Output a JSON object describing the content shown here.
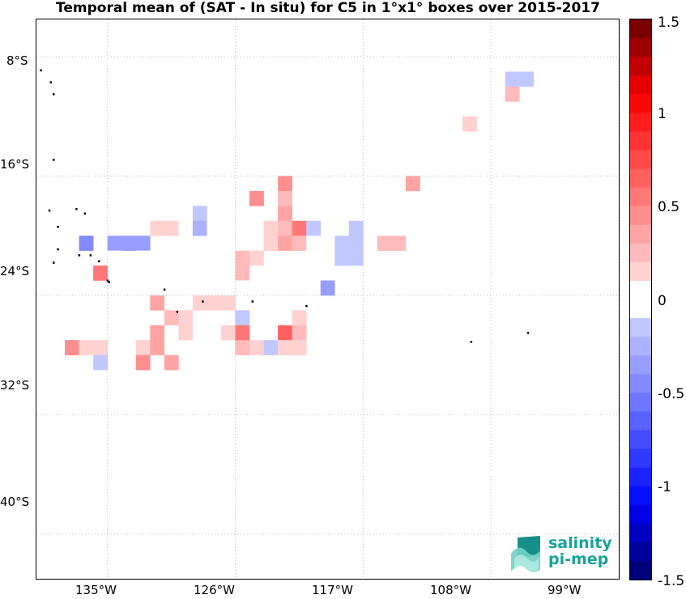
{
  "title": "Temporal mean of (SAT - In situ) for C5 in 1°x1° boxes over 2015-2017",
  "y_axis_labels": [
    "8°S",
    "16°S",
    "24°S",
    "32°S",
    "40°S"
  ],
  "x_axis_labels": [
    "135°W",
    "126°W",
    "117°W",
    "108°W",
    "99°W"
  ],
  "colorbar": {
    "tick_labels": [
      "1.5",
      "1",
      "0.5",
      "0",
      "-0.5",
      "-1",
      "-1.5"
    ],
    "min": -1.5,
    "max": 1.5,
    "levels": 30,
    "neg_color": "#00007a",
    "pos_color": "#7a0000"
  },
  "logo": {
    "line1": "salinity",
    "line2": "pi-mep",
    "color": "#17a39a"
  },
  "chart_data": {
    "type": "heatmap",
    "title": "Temporal mean of (SAT - In situ) for C5 in 1°x1° boxes over 2015-2017",
    "xlabel": "",
    "ylabel": "",
    "lon_range": [
      -140,
      -99
    ],
    "lat_range": [
      -43,
      -5.5
    ],
    "grid": true,
    "cells": [
      {
        "lon": -106.5,
        "lat": -9.5,
        "value": -0.15
      },
      {
        "lon": -105.5,
        "lat": -9.5,
        "value": -0.15
      },
      {
        "lon": -106.5,
        "lat": -10.5,
        "value": 0.25
      },
      {
        "lon": -109.5,
        "lat": -12.5,
        "value": 0.15
      },
      {
        "lon": -122.5,
        "lat": -16.5,
        "value": 0.45
      },
      {
        "lon": -113.5,
        "lat": -16.5,
        "value": 0.3
      },
      {
        "lon": -124.5,
        "lat": -17.5,
        "value": 0.45
      },
      {
        "lon": -122.5,
        "lat": -17.5,
        "value": 0.25
      },
      {
        "lon": -128.5,
        "lat": -18.5,
        "value": -0.1
      },
      {
        "lon": -122.5,
        "lat": -18.5,
        "value": 0.35
      },
      {
        "lon": -120.5,
        "lat": -18.5,
        "value": -0.05
      },
      {
        "lon": -131.5,
        "lat": -19.5,
        "value": 0.1
      },
      {
        "lon": -130.5,
        "lat": -19.5,
        "value": 0.1
      },
      {
        "lon": -129.5,
        "lat": -19.5,
        "value": -0.05
      },
      {
        "lon": -128.5,
        "lat": -19.5,
        "value": -0.25
      },
      {
        "lon": -127.5,
        "lat": -19.5,
        "value": -0.05
      },
      {
        "lon": -123.5,
        "lat": -19.5,
        "value": 0.15
      },
      {
        "lon": -122.5,
        "lat": -19.5,
        "value": 0.2
      },
      {
        "lon": -121.5,
        "lat": -19.5,
        "value": 0.5
      },
      {
        "lon": -120.5,
        "lat": -19.5,
        "value": -0.1
      },
      {
        "lon": -118.5,
        "lat": -19.5,
        "value": -0.05
      },
      {
        "lon": -117.5,
        "lat": -19.5,
        "value": -0.2
      },
      {
        "lon": -136.5,
        "lat": -20.5,
        "value": -0.5
      },
      {
        "lon": -134.5,
        "lat": -20.5,
        "value": -0.3
      },
      {
        "lon": -133.5,
        "lat": -20.5,
        "value": -0.3
      },
      {
        "lon": -132.5,
        "lat": -20.5,
        "value": -0.3
      },
      {
        "lon": -123.5,
        "lat": -20.5,
        "value": 0.15
      },
      {
        "lon": -122.5,
        "lat": -20.5,
        "value": 0.3
      },
      {
        "lon": -121.5,
        "lat": -20.5,
        "value": 0.25
      },
      {
        "lon": -120.5,
        "lat": -20.5,
        "value": -0.05
      },
      {
        "lon": -118.5,
        "lat": -20.5,
        "value": -0.15
      },
      {
        "lon": -117.5,
        "lat": -20.5,
        "value": -0.2
      },
      {
        "lon": -115.5,
        "lat": -20.5,
        "value": 0.2
      },
      {
        "lon": -114.5,
        "lat": -20.5,
        "value": 0.2
      },
      {
        "lon": -134.5,
        "lat": -21.5,
        "value": -0.05
      },
      {
        "lon": -132.5,
        "lat": -21.5,
        "value": -0.05
      },
      {
        "lon": -131.5,
        "lat": -21.5,
        "value": -0.05
      },
      {
        "lon": -129.5,
        "lat": -21.5,
        "value": -0.05
      },
      {
        "lon": -125.5,
        "lat": -21.5,
        "value": 0.2
      },
      {
        "lon": -124.5,
        "lat": -21.5,
        "value": 0.15
      },
      {
        "lon": -118.5,
        "lat": -21.5,
        "value": -0.1
      },
      {
        "lon": -117.5,
        "lat": -21.5,
        "value": -0.2
      },
      {
        "lon": -135.5,
        "lat": -22.5,
        "value": 0.5
      },
      {
        "lon": -125.5,
        "lat": -22.5,
        "value": 0.25
      },
      {
        "lon": -125.5,
        "lat": -23.5,
        "value": -0.05
      },
      {
        "lon": -119.5,
        "lat": -23.5,
        "value": -0.3
      },
      {
        "lon": -117.5,
        "lat": -23.5,
        "value": -0.05
      },
      {
        "lon": -131.5,
        "lat": -24.5,
        "value": 0.3
      },
      {
        "lon": -128.5,
        "lat": -24.5,
        "value": 0.15
      },
      {
        "lon": -127.5,
        "lat": -24.5,
        "value": 0.15
      },
      {
        "lon": -126.5,
        "lat": -24.5,
        "value": 0.1
      },
      {
        "lon": -121.5,
        "lat": -24.5,
        "value": -0.05
      },
      {
        "lon": -117.5,
        "lat": -24.5,
        "value": -0.05
      },
      {
        "lon": -116.5,
        "lat": -24.5,
        "value": -0.05
      },
      {
        "lon": -130.5,
        "lat": -25.5,
        "value": 0.2
      },
      {
        "lon": -129.5,
        "lat": -25.5,
        "value": 0.15
      },
      {
        "lon": -125.5,
        "lat": -25.5,
        "value": -0.15
      },
      {
        "lon": -121.5,
        "lat": -25.5,
        "value": 0.1
      },
      {
        "lon": -131.5,
        "lat": -26.5,
        "value": 0.35
      },
      {
        "lon": -129.5,
        "lat": -26.5,
        "value": 0.15
      },
      {
        "lon": -126.5,
        "lat": -26.5,
        "value": 0.15
      },
      {
        "lon": -125.5,
        "lat": -26.5,
        "value": 0.55
      },
      {
        "lon": -122.5,
        "lat": -26.5,
        "value": 0.65
      },
      {
        "lon": -121.5,
        "lat": -26.5,
        "value": 0.25
      },
      {
        "lon": -137.5,
        "lat": -27.5,
        "value": 0.45
      },
      {
        "lon": -136.5,
        "lat": -27.5,
        "value": 0.15
      },
      {
        "lon": -135.5,
        "lat": -27.5,
        "value": 0.15
      },
      {
        "lon": -132.5,
        "lat": -27.5,
        "value": 0.15
      },
      {
        "lon": -131.5,
        "lat": -27.5,
        "value": 0.3
      },
      {
        "lon": -125.5,
        "lat": -27.5,
        "value": 0.25
      },
      {
        "lon": -124.5,
        "lat": -27.5,
        "value": 0.15
      },
      {
        "lon": -123.5,
        "lat": -27.5,
        "value": -0.1
      },
      {
        "lon": -122.5,
        "lat": -27.5,
        "value": 0.1
      },
      {
        "lon": -121.5,
        "lat": -27.5,
        "value": 0.1
      },
      {
        "lon": -135.5,
        "lat": -28.5,
        "value": -0.1
      },
      {
        "lon": -132.5,
        "lat": -28.5,
        "value": 0.45
      },
      {
        "lon": -130.5,
        "lat": -28.5,
        "value": 0.3
      }
    ],
    "islands": [
      {
        "lon": -139.7,
        "lat": -8.9
      },
      {
        "lon": -139.0,
        "lat": -9.7
      },
      {
        "lon": -138.8,
        "lat": -10.5
      },
      {
        "lon": -138.8,
        "lat": -14.9
      },
      {
        "lon": -139.1,
        "lat": -18.3
      },
      {
        "lon": -138.5,
        "lat": -19.4
      },
      {
        "lon": -137.2,
        "lat": -18.2
      },
      {
        "lon": -136.6,
        "lat": -18.5
      },
      {
        "lon": -136.2,
        "lat": -21.3
      },
      {
        "lon": -135.6,
        "lat": -21.7
      },
      {
        "lon": -134.9,
        "lat": -23.1
      },
      {
        "lon": -135.0,
        "lat": -23.0
      },
      {
        "lon": -138.5,
        "lat": -20.9
      },
      {
        "lon": -138.8,
        "lat": -21.8
      },
      {
        "lon": -137.0,
        "lat": -21.3
      },
      {
        "lon": -131.0,
        "lat": -23.6
      },
      {
        "lon": -130.1,
        "lat": -25.1
      },
      {
        "lon": -128.3,
        "lat": -24.4
      },
      {
        "lon": -124.8,
        "lat": -24.4
      },
      {
        "lon": -121.0,
        "lat": -24.7
      },
      {
        "lon": -109.4,
        "lat": -27.1
      },
      {
        "lon": -105.4,
        "lat": -26.5
      }
    ]
  }
}
